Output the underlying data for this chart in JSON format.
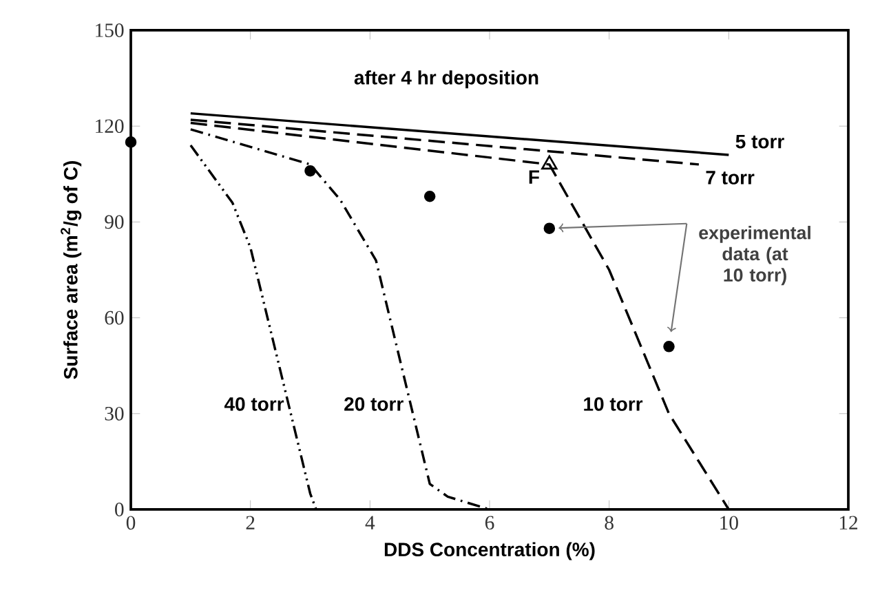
{
  "chart_data": {
    "type": "line",
    "title": "after 4 hr deposition",
    "xlabel": "DDS Concentration (%)",
    "ylabel": "Surface area (m$^{2}$/g of C)",
    "xlim": [
      0,
      12
    ],
    "ylim": [
      0,
      150
    ],
    "xticks": [
      0,
      2,
      4,
      6,
      8,
      10,
      12
    ],
    "yticks": [
      0,
      30,
      60,
      90,
      120,
      150
    ],
    "grid": false,
    "marker": "none",
    "annotations": [
      "experimental data (at 10 torr)"
    ],
    "series": [
      {
        "name": "5 torr",
        "color": "#000000",
        "line_style": "solid",
        "x": [
          1,
          10
        ],
        "values": [
          124,
          111
        ]
      },
      {
        "name": "7 torr",
        "color": "#000000",
        "line_style": "dashed",
        "x": [
          1,
          9.5
        ],
        "values": [
          122,
          108
        ]
      },
      {
        "name": "10 torr",
        "color": "#000000",
        "line_style": "dashed",
        "x": [
          1,
          7,
          8,
          9,
          10
        ],
        "values": [
          121,
          108,
          75,
          30,
          0
        ]
      },
      {
        "name": "20 torr",
        "color": "#000000",
        "line_style": "dashdotted",
        "x": [
          1,
          3,
          3.5,
          4.1,
          5,
          5.3,
          6
        ],
        "values": [
          119,
          108,
          97,
          78,
          8,
          4,
          0
        ]
      },
      {
        "name": "40 torr",
        "color": "#000000",
        "line_style": "dashdotdotted",
        "x": [
          1,
          1.7,
          2,
          3,
          3.1
        ],
        "values": [
          114,
          96,
          82,
          5,
          0
        ]
      },
      {
        "name": "F",
        "type": "scatter",
        "marker": "triangle",
        "color": "#000000",
        "x": [
          7
        ],
        "values": [
          108
        ]
      },
      {
        "type": "scatter",
        "marker": "circle",
        "color": "#000000",
        "x": [
          0,
          3,
          5,
          7,
          9
        ],
        "values": [
          115,
          106,
          98,
          88,
          51
        ]
      }
    ]
  }
}
